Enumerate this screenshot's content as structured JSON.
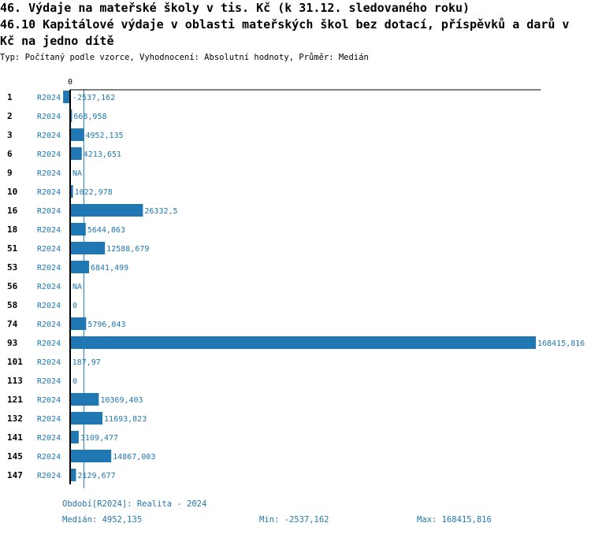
{
  "header": {
    "title_line1": "46. Výdaje na mateřské školy v tis. Kč (k 31.12. sledovaného roku)",
    "title_line2": "46.10 Kapitálové výdaje v oblasti mateřských škol bez dotací, příspěvků a darů v",
    "title_line3": "Kč na jedno dítě",
    "meta": "Typ: Počítaný podle vzorce, Vyhodnocení: Absolutní hodnoty, Průměr: Medián"
  },
  "chart_data": {
    "type": "bar",
    "orientation": "horizontal",
    "zero_label": "0",
    "period_label": "R2024",
    "rows": [
      {
        "id": "1",
        "value": -2537.162,
        "label": "-2537,162"
      },
      {
        "id": "2",
        "value": 668.958,
        "label": "668,958"
      },
      {
        "id": "3",
        "value": 4952.135,
        "label": "4952,135"
      },
      {
        "id": "6",
        "value": 4213.651,
        "label": "4213,651"
      },
      {
        "id": "9",
        "value": null,
        "label": "NA"
      },
      {
        "id": "10",
        "value": 1022.978,
        "label": "1022,978"
      },
      {
        "id": "16",
        "value": 26332.5,
        "label": "26332,5"
      },
      {
        "id": "18",
        "value": 5644.863,
        "label": "5644,863"
      },
      {
        "id": "51",
        "value": 12588.679,
        "label": "12588,679"
      },
      {
        "id": "53",
        "value": 6841.499,
        "label": "6841,499"
      },
      {
        "id": "56",
        "value": null,
        "label": "NA"
      },
      {
        "id": "58",
        "value": 0,
        "label": "0"
      },
      {
        "id": "74",
        "value": 5796.043,
        "label": "5796,043"
      },
      {
        "id": "93",
        "value": 168415.816,
        "label": "168415,816"
      },
      {
        "id": "101",
        "value": 187.97,
        "label": "187,97"
      },
      {
        "id": "113",
        "value": 0,
        "label": "0"
      },
      {
        "id": "121",
        "value": 10369.403,
        "label": "10369,403"
      },
      {
        "id": "132",
        "value": 11693.823,
        "label": "11693,823"
      },
      {
        "id": "141",
        "value": 3109.477,
        "label": "3109,477"
      },
      {
        "id": "145",
        "value": 14867.003,
        "label": "14867,003"
      },
      {
        "id": "147",
        "value": 2129.677,
        "label": "2129,677"
      }
    ],
    "median": 4952.135,
    "min": -2537.162,
    "max": 168415.816
  },
  "footer": {
    "period": "Období[R2024]: Realita - 2024",
    "median": "Medián: 4952,135",
    "min": "Min: -2537,162",
    "max": "Max: 168415,816"
  },
  "colors": {
    "bar": "#1f77b4",
    "label": "#1f77b4",
    "text": "#000000"
  }
}
